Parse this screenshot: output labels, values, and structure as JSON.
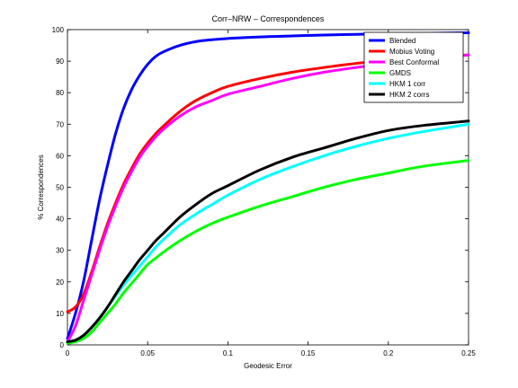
{
  "chart_data": {
    "type": "line",
    "title": "Corr–NRW – Correspondences",
    "xlabel": "Geodesic Error",
    "ylabel": "% Correspondences",
    "xlim": [
      0,
      0.25
    ],
    "ylim": [
      0,
      100
    ],
    "xticks": [
      0,
      0.05,
      0.1,
      0.15,
      0.2,
      0.25
    ],
    "xtick_labels": [
      "0",
      "0.05",
      "0.1",
      "0.15",
      "0.2",
      "0.25"
    ],
    "yticks": [
      0,
      10,
      20,
      30,
      40,
      50,
      60,
      70,
      80,
      90,
      100
    ],
    "ytick_labels": [
      "0",
      "10",
      "20",
      "30",
      "40",
      "50",
      "60",
      "70",
      "80",
      "90",
      "100"
    ],
    "grid": false,
    "legend_position": "top-right",
    "x": [
      0,
      0.005,
      0.01,
      0.015,
      0.02,
      0.025,
      0.03,
      0.035,
      0.04,
      0.045,
      0.05,
      0.055,
      0.06,
      0.07,
      0.08,
      0.09,
      0.1,
      0.12,
      0.14,
      0.16,
      0.18,
      0.2,
      0.22,
      0.25
    ],
    "series": [
      {
        "name": "Blended",
        "color": "#0000ff",
        "values": [
          2,
          10,
          20,
          33,
          46,
          57,
          67,
          75,
          81,
          85.5,
          89,
          91.5,
          93,
          95,
          96.2,
          96.8,
          97.2,
          97.7,
          98.0,
          98.3,
          98.5,
          98.7,
          98.8,
          99.0
        ]
      },
      {
        "name": "Mobius Voting",
        "color": "#ff0000",
        "values": [
          10.5,
          12,
          16,
          23,
          31,
          38.5,
          45,
          51,
          56,
          60.5,
          64,
          67,
          69.5,
          74,
          77.5,
          80,
          82,
          84.5,
          86.5,
          88,
          89.3,
          90.3,
          91,
          92
        ]
      },
      {
        "name": "Best Conformal",
        "color": "#ff00ff",
        "values": [
          1,
          6,
          14,
          22,
          30,
          37.5,
          44,
          50,
          55,
          59.5,
          63,
          66,
          68.5,
          72.5,
          75.5,
          77.5,
          79.5,
          82,
          84.5,
          86.5,
          88,
          89.3,
          90.3,
          92
        ]
      },
      {
        "name": "GMDS",
        "color": "#00ff00",
        "values": [
          0.5,
          1,
          2,
          4,
          7,
          10,
          13,
          16.5,
          19.5,
          22.5,
          25.5,
          27.5,
          29.5,
          33,
          36,
          38.5,
          40.5,
          44,
          47,
          50,
          52.5,
          54.5,
          56.5,
          58.5
        ]
      },
      {
        "name": "HKM 1 corr",
        "color": "#00ffff",
        "values": [
          1,
          1.5,
          3,
          5.5,
          8.5,
          12,
          15.5,
          19,
          22,
          25,
          28,
          31,
          33.5,
          38,
          41.5,
          44.5,
          47.5,
          52.5,
          56.5,
          60,
          63,
          65.5,
          67.5,
          70
        ]
      },
      {
        "name": "HKM 2 corrs",
        "color": "#000000",
        "values": [
          1,
          1.5,
          3,
          5.5,
          8.5,
          12,
          16,
          20,
          23.5,
          27,
          30,
          33,
          35.5,
          40.5,
          44.5,
          48,
          50.5,
          55.5,
          59.5,
          62.5,
          65.5,
          68,
          69.5,
          71
        ]
      }
    ]
  }
}
